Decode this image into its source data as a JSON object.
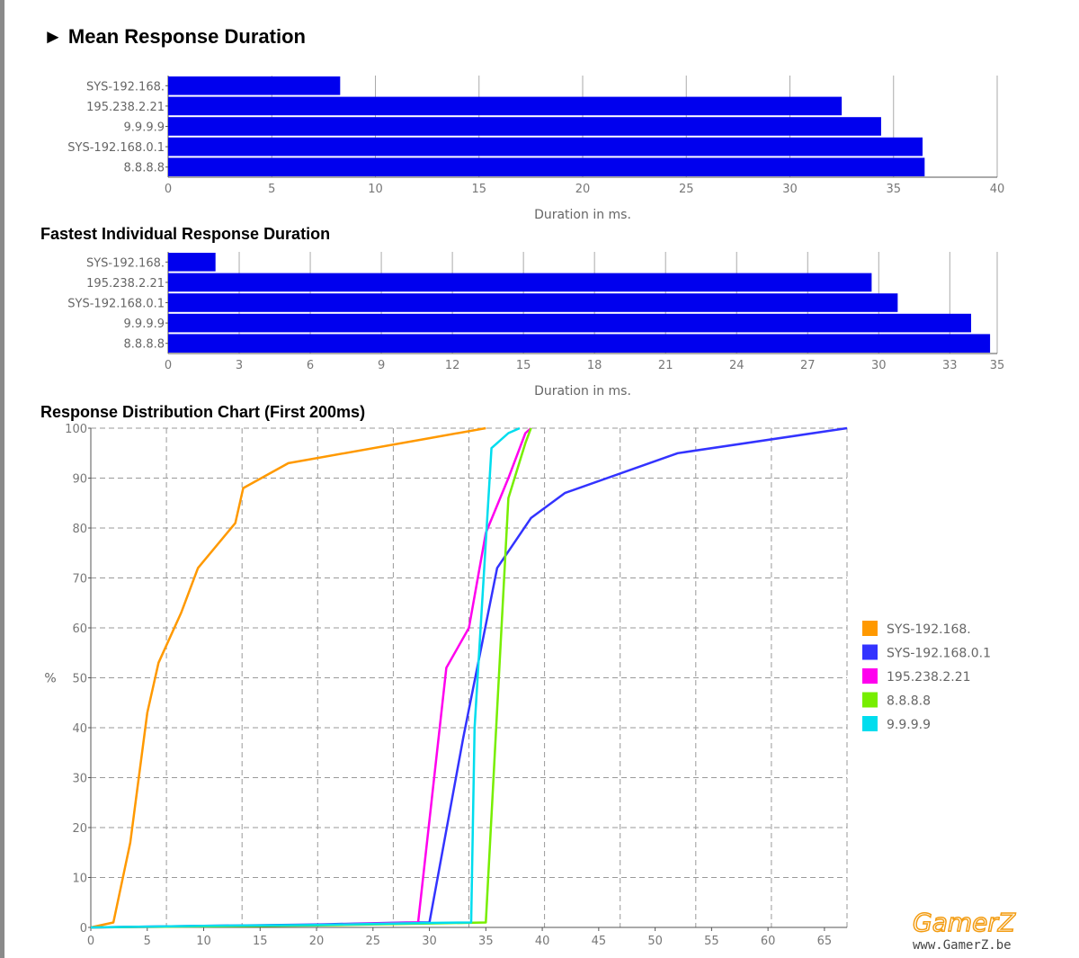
{
  "page": {
    "main_title": "Mean Response Duration",
    "arrow": "►",
    "fastest_title": "Fastest Individual Response Duration",
    "distribution_title": "Response Distribution Chart (First 200ms)"
  },
  "watermark": {
    "logo": "GamerZ",
    "url": "www.GamerZ.be"
  },
  "colors": {
    "bar": "#0000ee",
    "grid": "#aaaaaa"
  },
  "chart_data": [
    {
      "id": "mean",
      "type": "bar",
      "orientation": "horizontal",
      "title": "Mean Response Duration",
      "categories": [
        "SYS-192.168.",
        "195.238.2.21",
        "9.9.9.9",
        "SYS-192.168.0.1",
        "8.8.8.8"
      ],
      "values": [
        8.3,
        32.5,
        34.4,
        36.4,
        36.5
      ],
      "xlabel": "Duration in ms.",
      "xlim": [
        0,
        40
      ],
      "xticks": [
        0,
        5,
        10,
        15,
        20,
        25,
        30,
        35,
        40
      ],
      "grid": true
    },
    {
      "id": "fastest",
      "type": "bar",
      "orientation": "horizontal",
      "title": "Fastest Individual Response Duration",
      "categories": [
        "SYS-192.168.",
        "195.238.2.21",
        "SYS-192.168.0.1",
        "9.9.9.9",
        "8.8.8.8"
      ],
      "values": [
        2.0,
        29.7,
        30.8,
        33.9,
        34.7
      ],
      "xlabel": "Duration in ms.",
      "xlim": [
        0,
        35
      ],
      "xticks": [
        0,
        3,
        6,
        9,
        12,
        15,
        18,
        21,
        24,
        27,
        30,
        33,
        35
      ],
      "grid": true
    },
    {
      "id": "distribution",
      "type": "line",
      "title": "Response Distribution Chart (First 200ms)",
      "ylabel": "%",
      "xlim": [
        0,
        67
      ],
      "ylim": [
        0,
        100
      ],
      "xticks": [
        0,
        5,
        10,
        15,
        20,
        25,
        30,
        35,
        40,
        45,
        50,
        55,
        60,
        65
      ],
      "yticks": [
        0,
        10,
        20,
        30,
        40,
        50,
        60,
        70,
        80,
        90,
        100
      ],
      "grid": true,
      "legend_position": "right",
      "series": [
        {
          "name": "SYS-192.168.",
          "color": "#ff9900",
          "points": [
            [
              0,
              0
            ],
            [
              2,
              1
            ],
            [
              3.5,
              17
            ],
            [
              5,
              43
            ],
            [
              6,
              53
            ],
            [
              8,
              63
            ],
            [
              9.5,
              72
            ],
            [
              12.8,
              81
            ],
            [
              13.5,
              88
            ],
            [
              17.5,
              93
            ],
            [
              30,
              98
            ],
            [
              35,
              100
            ]
          ]
        },
        {
          "name": "SYS-192.168.0.1",
          "color": "#3333ff",
          "points": [
            [
              0,
              0
            ],
            [
              10,
              0.3
            ],
            [
              20,
              0.6
            ],
            [
              28,
              1
            ],
            [
              30,
              1
            ],
            [
              33,
              38
            ],
            [
              36,
              72
            ],
            [
              39,
              82
            ],
            [
              42,
              87
            ],
            [
              52,
              95
            ],
            [
              67,
              100
            ]
          ]
        },
        {
          "name": "195.238.2.21",
          "color": "#ff00ee",
          "points": [
            [
              0,
              0
            ],
            [
              10,
              0.2
            ],
            [
              20,
              0.5
            ],
            [
              29,
              1
            ],
            [
              31.5,
              52
            ],
            [
              33.5,
              60
            ],
            [
              35,
              79
            ],
            [
              37,
              90
            ],
            [
              38.5,
              99
            ],
            [
              39,
              100
            ]
          ]
        },
        {
          "name": "8.8.8.8",
          "color": "#77ee00",
          "points": [
            [
              0,
              0
            ],
            [
              10,
              0.2
            ],
            [
              20,
              0.4
            ],
            [
              30,
              0.8
            ],
            [
              35,
              1
            ],
            [
              37,
              86
            ],
            [
              38.5,
              97
            ],
            [
              39,
              100
            ]
          ]
        },
        {
          "name": "9.9.9.9",
          "color": "#00ddee",
          "points": [
            [
              0,
              0
            ],
            [
              10,
              0.3
            ],
            [
              20,
              0.5
            ],
            [
              30,
              0.9
            ],
            [
              33.7,
              1
            ],
            [
              34,
              40
            ],
            [
              35.5,
              96
            ],
            [
              37,
              99
            ],
            [
              38,
              100
            ]
          ]
        }
      ]
    }
  ]
}
